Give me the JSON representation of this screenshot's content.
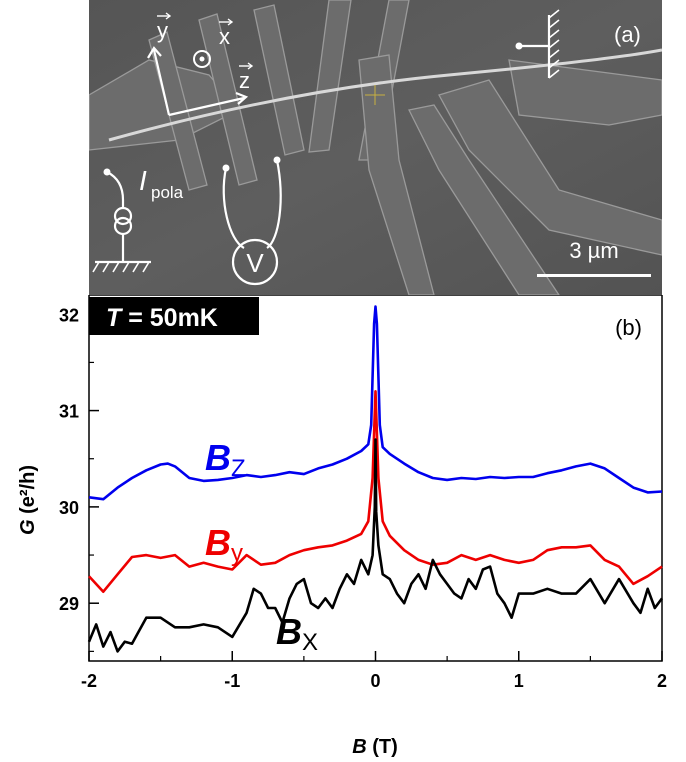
{
  "panel_a": {
    "label": "(a)",
    "axis_y": "y",
    "axis_x": "x",
    "axis_z": "z",
    "current_label": "I",
    "current_subscript": "pola",
    "voltmeter_label": "V",
    "scale_bar_label": "3 µm"
  },
  "panel_b": {
    "label": "(b)",
    "temperature_symbol": "T",
    "temperature_value": " = 50mK",
    "curve_labels": {
      "bz_main": "B",
      "bz_sub": "Z",
      "by_main": "B",
      "by_sub": "y",
      "bx_main": "B",
      "bx_sub": "X"
    }
  },
  "colors": {
    "bz": "#0000ee",
    "by": "#ee0000",
    "bx": "#000000",
    "sem_background": "#5a5a5a"
  },
  "chart_data": {
    "type": "line",
    "xlabel_main": "B",
    "xlabel_unit": " (T)",
    "ylabel_main": "G",
    "ylabel_unit": " (e²/h)",
    "xlim": [
      -2,
      2
    ],
    "ylim": [
      28.4,
      32.2
    ],
    "x_ticks": [
      -2,
      -1,
      0,
      1,
      2
    ],
    "y_ticks": [
      29,
      30,
      31,
      32
    ],
    "grid": false,
    "series": [
      {
        "key": "bz",
        "x": [
          -2.0,
          -1.9,
          -1.8,
          -1.7,
          -1.6,
          -1.5,
          -1.45,
          -1.4,
          -1.3,
          -1.2,
          -1.1,
          -1.0,
          -0.9,
          -0.8,
          -0.7,
          -0.6,
          -0.5,
          -0.4,
          -0.3,
          -0.2,
          -0.1,
          -0.05,
          -0.03,
          -0.01,
          0.0,
          0.01,
          0.03,
          0.05,
          0.1,
          0.2,
          0.3,
          0.4,
          0.5,
          0.6,
          0.7,
          0.8,
          0.9,
          1.0,
          1.1,
          1.2,
          1.3,
          1.4,
          1.5,
          1.6,
          1.7,
          1.8,
          1.9,
          2.0
        ],
        "y": [
          30.1,
          30.08,
          30.2,
          30.3,
          30.38,
          30.44,
          30.45,
          30.42,
          30.3,
          30.27,
          30.28,
          30.3,
          30.33,
          30.31,
          30.33,
          30.36,
          30.34,
          30.4,
          30.44,
          30.5,
          30.58,
          30.65,
          30.85,
          31.9,
          32.08,
          31.9,
          30.85,
          30.62,
          30.55,
          30.45,
          30.36,
          30.3,
          30.28,
          30.3,
          30.29,
          30.31,
          30.3,
          30.31,
          30.31,
          30.35,
          30.38,
          30.42,
          30.45,
          30.4,
          30.3,
          30.2,
          30.15,
          30.16
        ]
      },
      {
        "key": "by",
        "x": [
          -2.0,
          -1.9,
          -1.8,
          -1.7,
          -1.6,
          -1.5,
          -1.4,
          -1.3,
          -1.2,
          -1.1,
          -1.0,
          -0.9,
          -0.8,
          -0.7,
          -0.6,
          -0.5,
          -0.4,
          -0.3,
          -0.2,
          -0.1,
          -0.05,
          -0.02,
          0.0,
          0.02,
          0.05,
          0.1,
          0.2,
          0.3,
          0.4,
          0.5,
          0.6,
          0.7,
          0.8,
          0.9,
          1.0,
          1.1,
          1.2,
          1.3,
          1.4,
          1.5,
          1.6,
          1.7,
          1.8,
          1.9,
          2.0
        ],
        "y": [
          29.28,
          29.12,
          29.3,
          29.48,
          29.5,
          29.47,
          29.5,
          29.38,
          29.42,
          29.38,
          29.35,
          29.5,
          29.4,
          29.42,
          29.5,
          29.55,
          29.58,
          29.6,
          29.65,
          29.72,
          29.85,
          30.3,
          31.2,
          30.3,
          29.85,
          29.7,
          29.55,
          29.45,
          29.4,
          29.42,
          29.5,
          29.45,
          29.5,
          29.45,
          29.42,
          29.45,
          29.55,
          29.58,
          29.58,
          29.6,
          29.45,
          29.38,
          29.2,
          29.28,
          29.38
        ]
      },
      {
        "key": "bx",
        "x": [
          -2.0,
          -1.95,
          -1.9,
          -1.85,
          -1.8,
          -1.75,
          -1.7,
          -1.6,
          -1.5,
          -1.4,
          -1.3,
          -1.2,
          -1.1,
          -1.0,
          -0.9,
          -0.85,
          -0.8,
          -0.75,
          -0.7,
          -0.65,
          -0.6,
          -0.55,
          -0.5,
          -0.45,
          -0.4,
          -0.35,
          -0.3,
          -0.25,
          -0.2,
          -0.15,
          -0.1,
          -0.05,
          -0.02,
          -0.005,
          0.0,
          0.005,
          0.02,
          0.05,
          0.1,
          0.15,
          0.2,
          0.25,
          0.3,
          0.35,
          0.4,
          0.45,
          0.5,
          0.55,
          0.6,
          0.65,
          0.7,
          0.75,
          0.8,
          0.85,
          0.9,
          0.95,
          1.0,
          1.1,
          1.2,
          1.3,
          1.4,
          1.5,
          1.6,
          1.7,
          1.8,
          1.85,
          1.9,
          1.95,
          2.0
        ],
        "y": [
          28.6,
          28.78,
          28.55,
          28.7,
          28.5,
          28.6,
          28.58,
          28.85,
          28.85,
          28.75,
          28.75,
          28.78,
          28.75,
          28.65,
          28.9,
          29.15,
          29.1,
          28.95,
          28.95,
          28.8,
          29.05,
          29.2,
          29.25,
          29.0,
          28.95,
          29.05,
          28.95,
          29.15,
          29.3,
          29.2,
          29.45,
          29.3,
          29.5,
          30.0,
          30.7,
          29.95,
          29.6,
          29.3,
          29.25,
          29.1,
          29.0,
          29.2,
          29.3,
          29.15,
          29.45,
          29.3,
          29.2,
          29.1,
          29.05,
          29.25,
          29.15,
          29.35,
          29.38,
          29.1,
          29.0,
          28.85,
          29.1,
          29.1,
          29.15,
          29.1,
          29.1,
          29.25,
          29.0,
          29.25,
          29.0,
          28.9,
          29.15,
          28.95,
          29.05
        ]
      }
    ]
  }
}
